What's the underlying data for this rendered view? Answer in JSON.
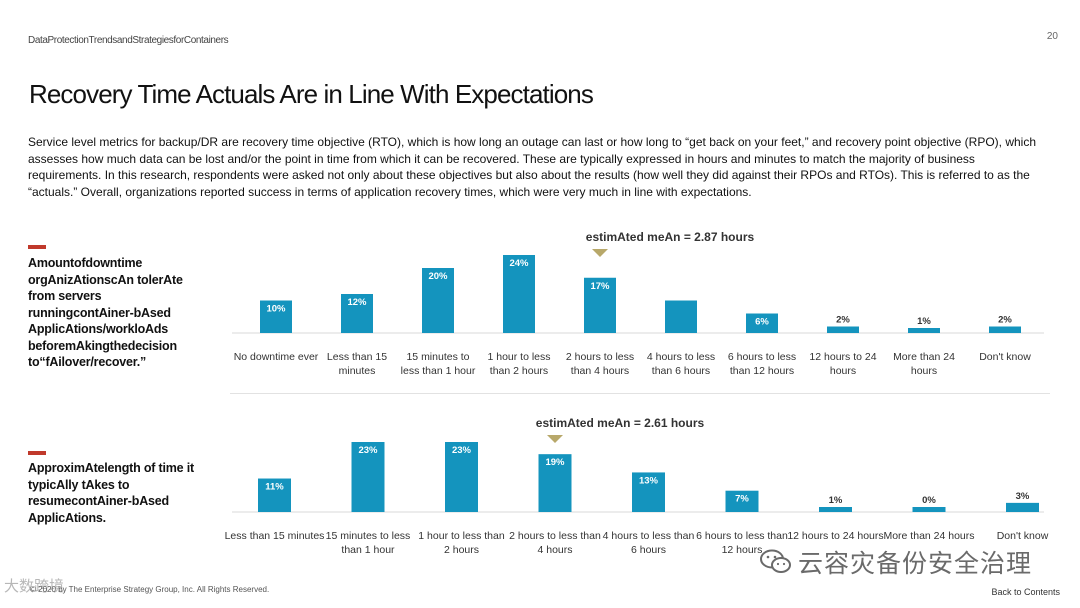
{
  "header": {
    "report_label": "DataProtectionTrendsandStrategiesforContainers",
    "page_number": "20",
    "title": "Recovery Time Actuals Are in Line With Expectations"
  },
  "intro": {
    "text": "Service level metrics for backup/DR are recovery time objective (RTO), which is how long an outage can last or how long to “get back on your feet,” and recovery point objective (RPO), which assesses how much data can be lost and/or the point in time from which it can be recovered. These are typically expressed in hours and minutes to match the majority of business requirements. In this research, respondents were asked not only about these objectives but also about the results (how well they did against their RPOs and RTOs). This is referred to as the “actuals.” Overall, organizations reported success in terms of application recovery times, which were very much in line with expectations."
  },
  "sections": [
    {
      "label": "Amountofdowntime orgAnizAtionscAn tolerAte from servers runningcontAiner-bAsed ApplicAtions/workloAds beforemAkingthedecision to“fAilover/recover.”"
    },
    {
      "label": "ApproximAtelength of time it typicAlly tAkes to resumecontAiner-bAsed ApplicAtions."
    }
  ],
  "colors": {
    "bar": "#1494be",
    "mean_marker": "#b8a86a",
    "accent": "#c0392b"
  },
  "chart_data": [
    {
      "type": "bar",
      "title": "",
      "annotation": "estimAted meAn = 2.87 hours",
      "mean_index": 4,
      "categories": [
        "No downtime ever",
        "Less than 15 minutes",
        "15 minutes to less than 1 hour",
        "1 hour to less than 2 hours",
        "2 hours to less than 4 hours",
        "4 hours to less than 6 hours",
        "6 hours to less than 12 hours",
        "12 hours to 24 hours",
        "More than 24 hours",
        "Don't know"
      ],
      "values": [
        10,
        12,
        20,
        24,
        17,
        10,
        6,
        2,
        1,
        2
      ],
      "data_labels": [
        "10%",
        "12%",
        "20%",
        "24%",
        "17%",
        "",
        "6%",
        "2%",
        "1%",
        "2%"
      ],
      "xlabel": "",
      "ylabel": "",
      "ylim": [
        0,
        24
      ]
    },
    {
      "type": "bar",
      "title": "",
      "annotation": "estimAted meAn = 2.61 hours",
      "mean_index": 3,
      "categories": [
        "Less than 15 minutes",
        "15 minutes to less than 1 hour",
        "1 hour to less than 2 hours",
        "2 hours to less than 4 hours",
        "4 hours to less than 6 hours",
        "6 hours to less than 12 hours",
        "12 hours to 24 hours",
        "More than 24 hours",
        "Don't know"
      ],
      "values": [
        11,
        23,
        23,
        19,
        13,
        7,
        1,
        0,
        3
      ],
      "data_labels": [
        "11%",
        "23%",
        "23%",
        "19%",
        "13%",
        "7%",
        "1%",
        "0%",
        "3%"
      ],
      "xlabel": "",
      "ylabel": "",
      "ylim": [
        0,
        23
      ]
    }
  ],
  "footer": {
    "copyright": "© 2020 by The Enterprise Strategy Group, Inc. All Rights Reserved.",
    "back_link": "Back to Contents",
    "watermark_left": "大数跨境",
    "watermark_right": "云容灾备份安全治理"
  }
}
